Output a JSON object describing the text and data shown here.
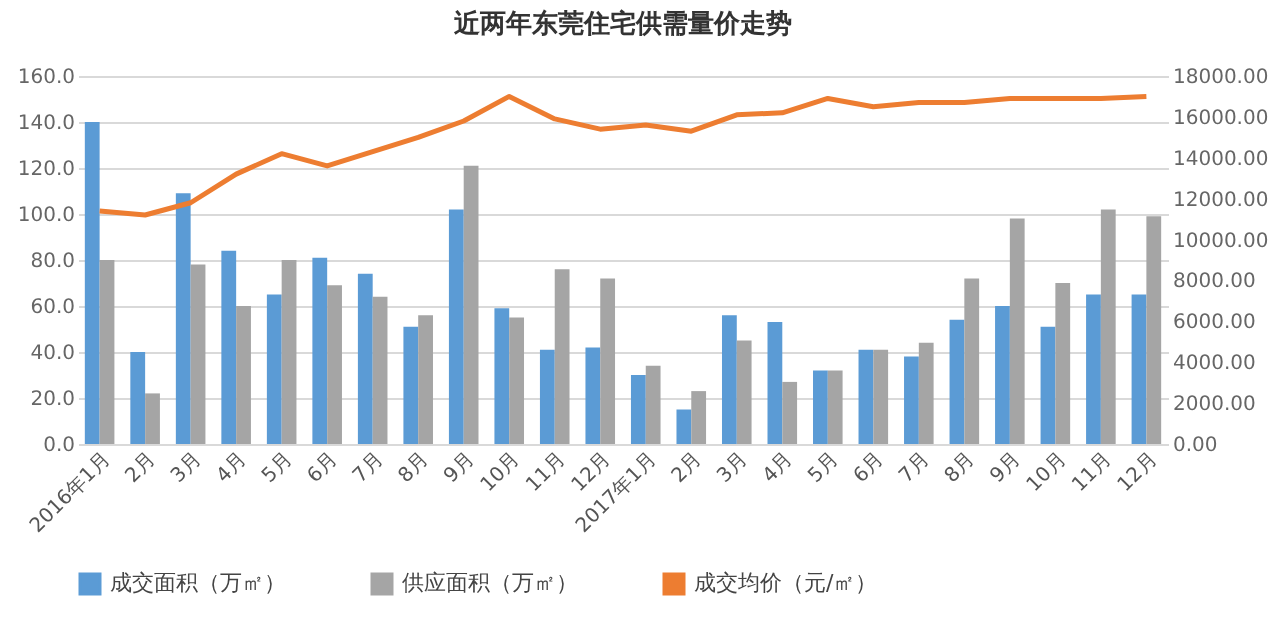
{
  "chart_data": {
    "type": "bar",
    "title": "近两年东莞住宅供需量价走势",
    "categories": [
      "2016年1月",
      "2月",
      "3月",
      "4月",
      "5月",
      "6月",
      "7月",
      "8月",
      "9月",
      "10月",
      "11月",
      "12月",
      "2017年1月",
      "2月",
      "3月",
      "4月",
      "5月",
      "6月",
      "7月",
      "8月",
      "9月",
      "10月",
      "11月",
      "12月"
    ],
    "series": [
      {
        "name": "成交面积（万㎡）",
        "color": "#5b9bd5",
        "values": [
          140,
          40,
          109,
          84,
          65,
          81,
          74,
          51,
          102,
          59,
          41,
          42,
          30,
          15,
          56,
          53,
          32,
          41,
          38,
          54,
          60,
          51,
          65,
          65
        ]
      },
      {
        "name": "供应面积（万㎡）",
        "color": "#a5a5a5",
        "values": [
          80,
          22,
          78,
          60,
          80,
          69,
          64,
          56,
          121,
          55,
          76,
          72,
          34,
          23,
          45,
          27,
          32,
          41,
          44,
          72,
          98,
          70,
          102,
          99
        ]
      },
      {
        "name": "成交均价（元/㎡）",
        "type": "line",
        "axis": "y2",
        "color": "#ed7d31",
        "values": [
          11400,
          11200,
          11800,
          13200,
          14200,
          13600,
          14300,
          15000,
          15800,
          17000,
          15900,
          15400,
          15600,
          15300,
          16100,
          16200,
          16900,
          16500,
          16700,
          16700,
          16900,
          16900,
          16900,
          17000
        ]
      }
    ],
    "ylim": [
      0,
      160
    ],
    "yticks": [
      {
        "value": 0,
        "label": "0.0"
      },
      {
        "value": 20,
        "label": "20.0"
      },
      {
        "value": 40,
        "label": "40.0"
      },
      {
        "value": 60,
        "label": "60.0"
      },
      {
        "value": 80,
        "label": "80.0"
      },
      {
        "value": 100,
        "label": "100.0"
      },
      {
        "value": 120,
        "label": "120.0"
      },
      {
        "value": 140,
        "label": "140.0"
      },
      {
        "value": 160,
        "label": "160.0"
      }
    ],
    "y2lim": [
      0,
      18000
    ],
    "y2ticks": [
      {
        "value": 0,
        "label": "0.00"
      },
      {
        "value": 2000,
        "label": "2000.00"
      },
      {
        "value": 4000,
        "label": "4000.00"
      },
      {
        "value": 6000,
        "label": "6000.00"
      },
      {
        "value": 8000,
        "label": "8000.00"
      },
      {
        "value": 10000,
        "label": "10000.00"
      },
      {
        "value": 12000,
        "label": "12000.00"
      },
      {
        "value": 14000,
        "label": "14000.00"
      },
      {
        "value": 16000,
        "label": "16000.00"
      },
      {
        "value": 18000,
        "label": "18000.00"
      }
    ],
    "grid": "y",
    "legend": "bottom"
  }
}
